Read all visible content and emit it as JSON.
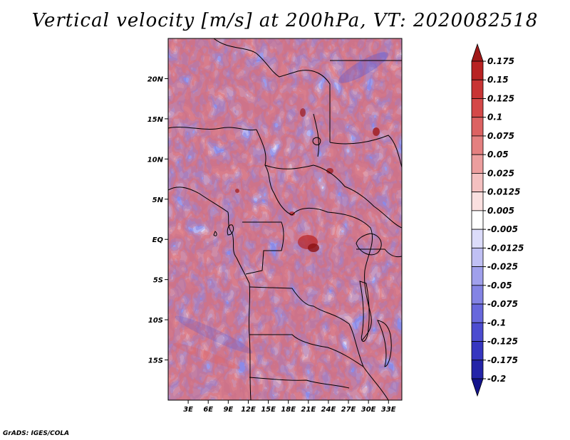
{
  "title": "Vertical velocity [m/s] at 200hPa, VT: 2020082518",
  "credit": "GrADS: IGES/COLA",
  "map": {
    "projection": "latlon",
    "lon_range": [
      0,
      35
    ],
    "lat_range": [
      -20,
      25
    ],
    "x_ticks": [
      {
        "value": 3,
        "label": "3E"
      },
      {
        "value": 6,
        "label": "6E"
      },
      {
        "value": 9,
        "label": "9E"
      },
      {
        "value": 12,
        "label": "12E"
      },
      {
        "value": 15,
        "label": "15E"
      },
      {
        "value": 18,
        "label": "18E"
      },
      {
        "value": 21,
        "label": "21E"
      },
      {
        "value": 24,
        "label": "24E"
      },
      {
        "value": 27,
        "label": "27E"
      },
      {
        "value": 30,
        "label": "30E"
      },
      {
        "value": 33,
        "label": "33E"
      }
    ],
    "y_ticks": [
      {
        "value": 20,
        "label": "20N"
      },
      {
        "value": 15,
        "label": "15N"
      },
      {
        "value": 10,
        "label": "10N"
      },
      {
        "value": 5,
        "label": "5N"
      },
      {
        "value": 0,
        "label": "EQ"
      },
      {
        "value": -5,
        "label": "5S"
      },
      {
        "value": -10,
        "label": "10S"
      },
      {
        "value": -15,
        "label": "15S"
      }
    ]
  },
  "colorbar": {
    "levels": [
      "0.175",
      "0.15",
      "0.125",
      "0.1",
      "0.075",
      "0.05",
      "0.025",
      "0.0125",
      "0.005",
      "-0.005",
      "-0.0125",
      "-0.025",
      "-0.05",
      "-0.075",
      "-0.1",
      "-0.125",
      "-0.175",
      "-0.2"
    ],
    "colors": [
      "#a01818",
      "#b82222",
      "#c83434",
      "#d44848",
      "#dc6262",
      "#e48080",
      "#ec9e9e",
      "#f4c0c0",
      "#fae0e0",
      "#ffffff",
      "#dcdcfa",
      "#c0c0f4",
      "#a0a0ec",
      "#8484e4",
      "#6868dc",
      "#4c4cd0",
      "#3636c0",
      "#2424a8",
      "#14148c"
    ]
  }
}
